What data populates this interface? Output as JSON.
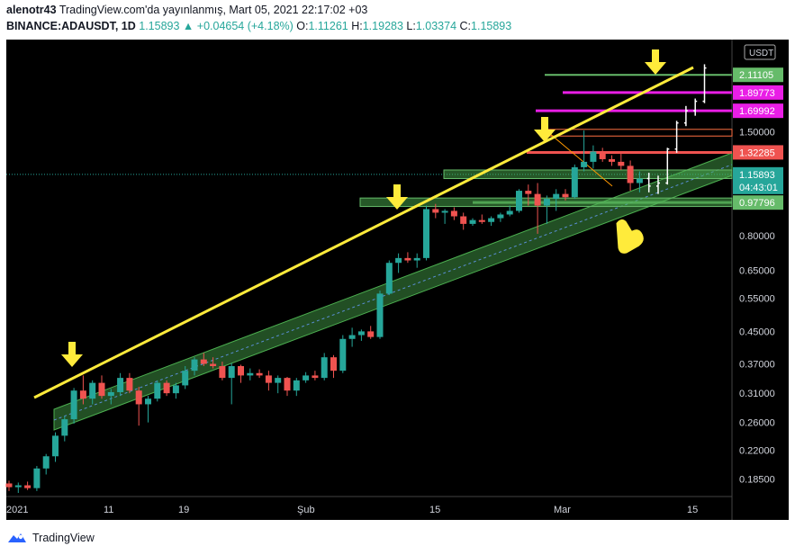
{
  "header": {
    "author": "alenotr43",
    "published_text": "TradingView.com'da yayınlanmış, Mart 05, 2021 22:17:02 +03",
    "symbol": "BINANCE:ADAUSDT, 1D",
    "last": "1.15893",
    "change": "▲ +0.04654 (+4.18%)",
    "open_label": "O:",
    "open": "1.11261",
    "high_label": "H:",
    "high": "1.19283",
    "low_label": "L:",
    "low": "1.03374",
    "close_label": "C:",
    "close": "1.15893"
  },
  "footer": {
    "brand": "TradingView"
  },
  "colors": {
    "up": "#26a69a",
    "down": "#ef5350",
    "bg": "#000000",
    "trend": "#ffeb3b",
    "channel": "#4caf50",
    "magenta": "#e91ee6",
    "level_green": "#66bb6a",
    "level_red": "#ef5350"
  },
  "chart_data": {
    "type": "candlestick",
    "y_scale": "log",
    "ylim": [
      0.17,
      2.5
    ],
    "currency_label": "USDT",
    "y_ticks": [
      "0.18500",
      "0.22000",
      "0.26000",
      "0.31000",
      "0.37000",
      "0.45000",
      "0.55000",
      "0.65000",
      "0.80000",
      "1.50000"
    ],
    "x_ticks": [
      "2021",
      "11",
      "19",
      "Şub",
      "15",
      "Mar",
      "15"
    ],
    "price_labels": [
      {
        "text": "2.11105",
        "color": "#66bb6a"
      },
      {
        "text": "1.89773",
        "color": "#e91ee6"
      },
      {
        "text": "1.69992",
        "color": "#e91ee6"
      },
      {
        "text": "1.32285",
        "color": "#ef5350"
      },
      {
        "text": "1.15893",
        "color": "#26a69a"
      },
      {
        "text": "04:43:01",
        "color": "#26a69a"
      },
      {
        "text": "0.97796",
        "color": "#66bb6a"
      }
    ],
    "candles": [
      [
        0.18,
        0.183,
        0.172,
        0.176
      ],
      [
        0.176,
        0.181,
        0.17,
        0.178
      ],
      [
        0.178,
        0.182,
        0.173,
        0.175
      ],
      [
        0.175,
        0.2,
        0.172,
        0.197
      ],
      [
        0.197,
        0.215,
        0.19,
        0.212
      ],
      [
        0.212,
        0.245,
        0.205,
        0.24
      ],
      [
        0.24,
        0.27,
        0.232,
        0.265
      ],
      [
        0.265,
        0.32,
        0.258,
        0.315
      ],
      [
        0.315,
        0.345,
        0.29,
        0.3
      ],
      [
        0.3,
        0.335,
        0.29,
        0.33
      ],
      [
        0.33,
        0.345,
        0.3,
        0.305
      ],
      [
        0.305,
        0.318,
        0.29,
        0.312
      ],
      [
        0.312,
        0.35,
        0.305,
        0.34
      ],
      [
        0.34,
        0.35,
        0.31,
        0.315
      ],
      [
        0.315,
        0.322,
        0.255,
        0.29
      ],
      [
        0.29,
        0.305,
        0.26,
        0.3
      ],
      [
        0.3,
        0.335,
        0.295,
        0.33
      ],
      [
        0.33,
        0.335,
        0.305,
        0.31
      ],
      [
        0.31,
        0.33,
        0.3,
        0.325
      ],
      [
        0.325,
        0.365,
        0.318,
        0.355
      ],
      [
        0.355,
        0.385,
        0.345,
        0.38
      ],
      [
        0.38,
        0.395,
        0.365,
        0.37
      ],
      [
        0.37,
        0.385,
        0.36,
        0.365
      ],
      [
        0.365,
        0.375,
        0.335,
        0.34
      ],
      [
        0.34,
        0.372,
        0.29,
        0.365
      ],
      [
        0.365,
        0.368,
        0.33,
        0.345
      ],
      [
        0.345,
        0.36,
        0.335,
        0.35
      ],
      [
        0.35,
        0.358,
        0.34,
        0.345
      ],
      [
        0.345,
        0.355,
        0.315,
        0.33
      ],
      [
        0.33,
        0.345,
        0.31,
        0.34
      ],
      [
        0.34,
        0.342,
        0.305,
        0.315
      ],
      [
        0.315,
        0.34,
        0.305,
        0.335
      ],
      [
        0.335,
        0.352,
        0.33,
        0.345
      ],
      [
        0.345,
        0.355,
        0.335,
        0.34
      ],
      [
        0.34,
        0.395,
        0.335,
        0.385
      ],
      [
        0.385,
        0.39,
        0.34,
        0.355
      ],
      [
        0.355,
        0.44,
        0.35,
        0.43
      ],
      [
        0.43,
        0.46,
        0.41,
        0.44
      ],
      [
        0.44,
        0.455,
        0.425,
        0.45
      ],
      [
        0.45,
        0.465,
        0.43,
        0.435
      ],
      [
        0.435,
        0.575,
        0.43,
        0.565
      ],
      [
        0.565,
        0.69,
        0.56,
        0.68
      ],
      [
        0.68,
        0.72,
        0.64,
        0.7
      ],
      [
        0.7,
        0.725,
        0.68,
        0.69
      ],
      [
        0.69,
        0.72,
        0.66,
        0.7
      ],
      [
        0.7,
        0.96,
        0.69,
        0.94
      ],
      [
        0.94,
        0.97,
        0.89,
        0.92
      ],
      [
        0.92,
        0.94,
        0.86,
        0.93
      ],
      [
        0.93,
        0.95,
        0.88,
        0.9
      ],
      [
        0.9,
        0.92,
        0.83,
        0.86
      ],
      [
        0.86,
        0.89,
        0.85,
        0.88
      ],
      [
        0.88,
        0.91,
        0.86,
        0.87
      ],
      [
        0.87,
        0.9,
        0.85,
        0.89
      ],
      [
        0.89,
        0.92,
        0.87,
        0.91
      ],
      [
        0.91,
        0.96,
        0.9,
        0.93
      ],
      [
        0.93,
        1.06,
        0.92,
        1.05
      ],
      [
        1.05,
        1.09,
        0.96,
        1.03
      ],
      [
        1.03,
        1.1,
        0.81,
        0.96
      ],
      [
        0.96,
        1.02,
        0.86,
        1.0
      ],
      [
        1.0,
        1.06,
        0.93,
        1.03
      ],
      [
        1.03,
        1.06,
        0.99,
        1.01
      ],
      [
        1.01,
        1.23,
        1.0,
        1.21
      ],
      [
        1.21,
        1.51,
        1.18,
        1.25
      ],
      [
        1.25,
        1.38,
        1.2,
        1.33
      ],
      [
        1.33,
        1.36,
        1.25,
        1.27
      ],
      [
        1.27,
        1.3,
        1.22,
        1.25
      ],
      [
        1.25,
        1.33,
        1.19,
        1.22
      ],
      [
        1.22,
        1.26,
        1.05,
        1.1
      ],
      [
        1.1,
        1.18,
        1.04,
        1.13
      ]
    ],
    "projection": [
      [
        1.13,
        1.17,
        1.04,
        1.08
      ],
      [
        1.08,
        1.15,
        1.03,
        1.1
      ],
      [
        1.1,
        1.36,
        1.09,
        1.35
      ],
      [
        1.35,
        1.6,
        1.32,
        1.58
      ],
      [
        1.58,
        1.75,
        1.55,
        1.7
      ],
      [
        1.7,
        1.83,
        1.65,
        1.8
      ],
      [
        1.8,
        2.25,
        1.78,
        2.2
      ]
    ]
  }
}
